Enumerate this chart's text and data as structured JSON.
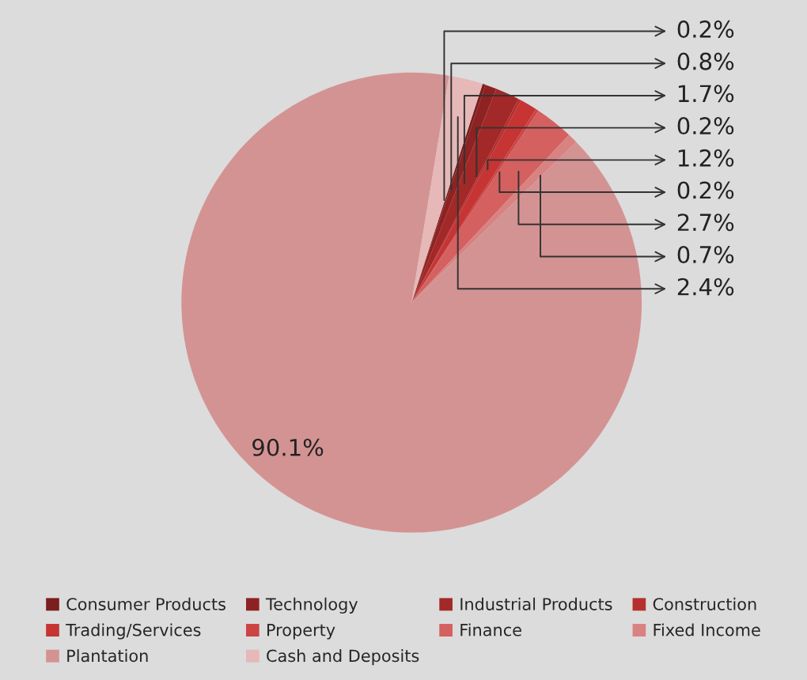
{
  "chart_data": {
    "type": "pie",
    "categories": [
      "Consumer Products",
      "Technology",
      "Industrial Products",
      "Construction",
      "Trading/Services",
      "Property",
      "Finance",
      "Fixed Income",
      "Plantation",
      "Cash and Deposits"
    ],
    "values": [
      0.2,
      0.8,
      1.7,
      0.2,
      1.2,
      0.2,
      2.7,
      0.7,
      90.1,
      2.4
    ],
    "value_labels": [
      "0.2%",
      "0.8%",
      "1.7%",
      "0.2%",
      "1.2%",
      "0.2%",
      "2.7%",
      "0.7%",
      "90.1%",
      "2.4%"
    ],
    "colors": [
      "#7a1e1e",
      "#8e2222",
      "#a32828",
      "#b52f2f",
      "#c63434",
      "#cc4444",
      "#d46060",
      "#d98282",
      "#d49393",
      "#e6b8b8"
    ],
    "legend": "bottom"
  }
}
